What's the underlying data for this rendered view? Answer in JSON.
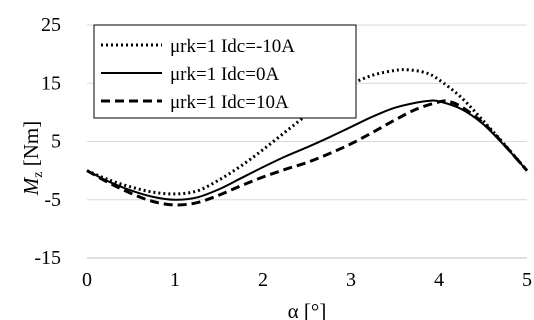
{
  "chart_data": {
    "type": "line",
    "title": "",
    "xlabel": "α [°]",
    "ylabel": {
      "main": "M",
      "sub": "z",
      "unit": " [Nm]"
    },
    "xlim": [
      0,
      5
    ],
    "ylim": [
      -15,
      25
    ],
    "x_ticks": [
      "0",
      "1",
      "2",
      "3",
      "4",
      "5"
    ],
    "y_ticks": [
      "-15",
      "-5",
      "5",
      "15",
      "25"
    ],
    "grid": "horizontal",
    "legend_position": "top-left",
    "series": [
      {
        "name": "μrk=1 Idc=-10A",
        "style": "dotted",
        "color": "#000000",
        "points": [
          [
            0,
            0
          ],
          [
            0.25,
            -1.6
          ],
          [
            0.5,
            -2.8
          ],
          [
            0.75,
            -3.7
          ],
          [
            1.0,
            -4.0
          ],
          [
            1.25,
            -3.5
          ],
          [
            1.5,
            -1.6
          ],
          [
            1.75,
            0.8
          ],
          [
            2.0,
            3.6
          ],
          [
            2.25,
            6.6
          ],
          [
            2.5,
            9.6
          ],
          [
            2.75,
            12.4
          ],
          [
            3.0,
            14.8
          ],
          [
            3.25,
            16.4
          ],
          [
            3.5,
            17.2
          ],
          [
            3.65,
            17.3
          ],
          [
            3.85,
            16.8
          ],
          [
            4.0,
            15.6
          ],
          [
            4.25,
            12.6
          ],
          [
            4.5,
            8.6
          ],
          [
            4.75,
            4.4
          ],
          [
            5.0,
            0
          ]
        ]
      },
      {
        "name": "μrk=1 Idc=0A",
        "style": "solid",
        "color": "#000000",
        "points": [
          [
            0,
            0
          ],
          [
            0.25,
            -1.9
          ],
          [
            0.5,
            -3.4
          ],
          [
            0.75,
            -4.5
          ],
          [
            1.0,
            -5.0
          ],
          [
            1.25,
            -4.6
          ],
          [
            1.5,
            -3.2
          ],
          [
            1.75,
            -1.3
          ],
          [
            2.0,
            0.6
          ],
          [
            2.25,
            2.4
          ],
          [
            2.5,
            4.0
          ],
          [
            2.75,
            5.7
          ],
          [
            3.0,
            7.5
          ],
          [
            3.25,
            9.3
          ],
          [
            3.5,
            10.8
          ],
          [
            3.75,
            11.7
          ],
          [
            3.9,
            12.0
          ],
          [
            4.0,
            11.9
          ],
          [
            4.25,
            10.6
          ],
          [
            4.5,
            8.0
          ],
          [
            4.75,
            4.2
          ],
          [
            5.0,
            0
          ]
        ]
      },
      {
        "name": "μrk=1 Idc=10A",
        "style": "dashed",
        "color": "#000000",
        "points": [
          [
            0,
            0
          ],
          [
            0.25,
            -2.1
          ],
          [
            0.5,
            -3.9
          ],
          [
            0.75,
            -5.3
          ],
          [
            1.0,
            -5.9
          ],
          [
            1.25,
            -5.5
          ],
          [
            1.5,
            -4.2
          ],
          [
            1.75,
            -2.6
          ],
          [
            2.0,
            -1.1
          ],
          [
            2.25,
            0.2
          ],
          [
            2.5,
            1.4
          ],
          [
            2.75,
            2.9
          ],
          [
            3.0,
            4.6
          ],
          [
            3.25,
            6.6
          ],
          [
            3.5,
            8.7
          ],
          [
            3.75,
            10.6
          ],
          [
            4.0,
            11.8
          ],
          [
            4.1,
            11.9
          ],
          [
            4.25,
            11.0
          ],
          [
            4.5,
            8.2
          ],
          [
            4.75,
            4.3
          ],
          [
            5.0,
            0
          ]
        ]
      }
    ]
  }
}
